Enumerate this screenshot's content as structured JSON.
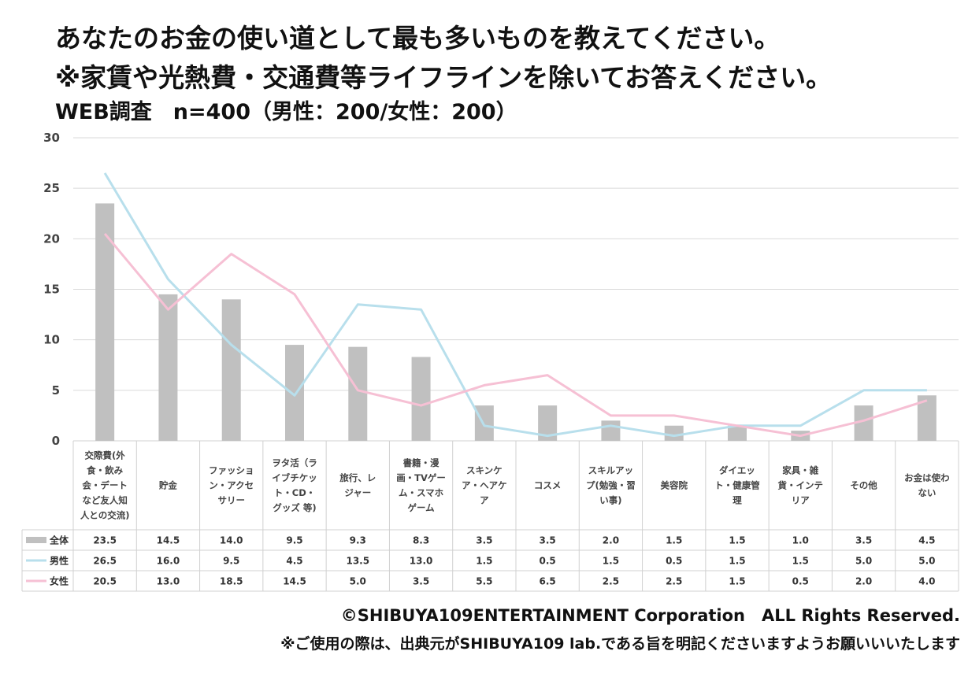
{
  "header": {
    "title_line1": "あなたのお金の使い道として最も多いものを教えてください。",
    "title_line2": "※家賃や光熱費・交通費等ライフラインを除いてお答えください。",
    "subtitle": "WEB調査　n=400（男性：200/女性：200）"
  },
  "footer": {
    "copyright": "©SHIBUYA109ENTERTAINMENT Corporation　ALL Rights Reserved.",
    "note": "※ご使用の際は、出典元がSHIBUYA109 lab.である旨を明記くださいますようお願いいいたします"
  },
  "colors": {
    "bar": "#c0c0c0",
    "male": "#b8dfec",
    "female": "#f6c0d4",
    "grid": "#d9d9d9",
    "table_border": "#d0d0d0"
  },
  "chart_data": {
    "type": "bar",
    "ylim": [
      0,
      30
    ],
    "yticks": [
      "0",
      "5",
      "10",
      "15",
      "20",
      "25",
      "30"
    ],
    "grid": true,
    "categories": [
      [
        "交際費(外",
        "食・飲み",
        "会・デート",
        "など友人知",
        "人との交流)"
      ],
      [
        "貯金"
      ],
      [
        "ファッショ",
        "ン・アクセ",
        "サリー"
      ],
      [
        "ヲタ活（ラ",
        "イブチケッ",
        "ト・CD・",
        "グッズ 等)"
      ],
      [
        "旅行、レ",
        "ジャー"
      ],
      [
        "書籍・漫",
        "画・TVゲー",
        "ム・スマホ",
        "ゲーム"
      ],
      [
        "スキンケ",
        "ア・ヘアケ",
        "ア"
      ],
      [
        "コスメ"
      ],
      [
        "スキルアッ",
        "プ(勉強・習",
        "い事)"
      ],
      [
        "美容院"
      ],
      [
        "ダイエッ",
        "ト・健康管",
        "理"
      ],
      [
        "家具・雑",
        "貨・インテ",
        "リア"
      ],
      [
        "その他"
      ],
      [
        "お金は使わ",
        "ない"
      ]
    ],
    "series": [
      {
        "name": "全体",
        "kind": "bar",
        "values": [
          23.5,
          14.5,
          14.0,
          9.5,
          9.3,
          8.3,
          3.5,
          3.5,
          2.0,
          1.5,
          1.5,
          1.0,
          3.5,
          4.5
        ],
        "labels": [
          "23.5",
          "14.5",
          "14.0",
          "9.5",
          "9.3",
          "8.3",
          "3.5",
          "3.5",
          "2.0",
          "1.5",
          "1.5",
          "1.0",
          "3.5",
          "4.5"
        ]
      },
      {
        "name": "男性",
        "kind": "line",
        "values": [
          26.5,
          16.0,
          9.5,
          4.5,
          13.5,
          13.0,
          1.5,
          0.5,
          1.5,
          0.5,
          1.5,
          1.5,
          5.0,
          5.0
        ],
        "labels": [
          "26.5",
          "16.0",
          "9.5",
          "4.5",
          "13.5",
          "13.0",
          "1.5",
          "0.5",
          "1.5",
          "0.5",
          "1.5",
          "1.5",
          "5.0",
          "5.0"
        ]
      },
      {
        "name": "女性",
        "kind": "line",
        "values": [
          20.5,
          13.0,
          18.5,
          14.5,
          5.0,
          3.5,
          5.5,
          6.5,
          2.5,
          2.5,
          1.5,
          0.5,
          2.0,
          4.0
        ],
        "labels": [
          "20.5",
          "13.0",
          "18.5",
          "14.5",
          "5.0",
          "3.5",
          "5.5",
          "6.5",
          "2.5",
          "2.5",
          "1.5",
          "0.5",
          "2.0",
          "4.0"
        ]
      }
    ]
  }
}
